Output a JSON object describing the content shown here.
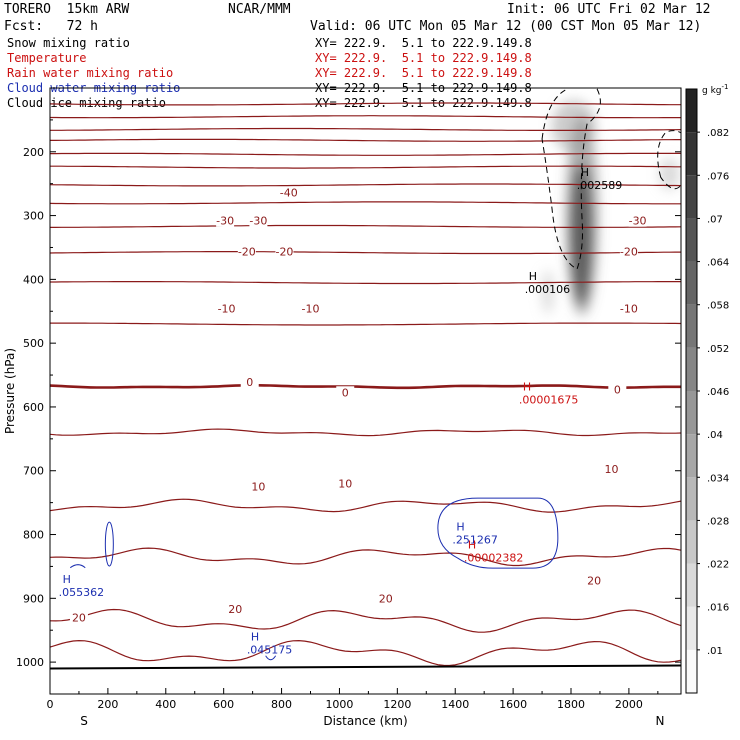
{
  "header": {
    "model": "TORERO  15km ARW",
    "source": "NCAR/MMM",
    "init": "Init: 06 UTC Fri 02 Mar 12",
    "fcst": "Fcst:   72 h",
    "valid": "Valid: 06 UTC Mon 05 Mar 12 (00 CST Mon 05 Mar 12)"
  },
  "colors": {
    "temperature": "#8b1a1a",
    "rain": "#cc1111",
    "cloud_water": "#1c2fb0",
    "cloud_ice": "#000000",
    "snow_shading": "#333333"
  },
  "legend": [
    {
      "label": "Snow mixing ratio",
      "xy": "XY= 222.9.  5.1 to 222.9.149.8",
      "color": "#000000"
    },
    {
      "label": "Temperature",
      "xy": "XY= 222.9.  5.1 to 222.9.149.8",
      "color": "#cc1111"
    },
    {
      "label": "Rain water mixing ratio",
      "xy": "XY= 222.9.  5.1 to 222.9.149.8",
      "color": "#cc1111"
    },
    {
      "label": "Cloud water mixing ratio",
      "xy": "XY= 222.9.  5.1 to 222.9.149.8",
      "color": "#1c2fb0"
    },
    {
      "label": "Cloud ice mixing ratio",
      "xy": "XY= 222.9.  5.1 to 222.9.149.8",
      "color": "#000000"
    }
  ],
  "chart_data": {
    "type": "cross-section",
    "xlabel": "Distance (km)",
    "ylabel": "Pressure (hPa)",
    "xlim": [
      0,
      2180
    ],
    "ylim": [
      1050,
      100
    ],
    "x_ticks": [
      0,
      200,
      400,
      600,
      800,
      1000,
      1200,
      1400,
      1600,
      1800,
      2000
    ],
    "y_ticks": [
      200,
      300,
      400,
      500,
      600,
      700,
      800,
      900,
      1000
    ],
    "endpoints": {
      "left": "S",
      "right": "N"
    },
    "surface_pressure_hPa": 1010,
    "temperature_isotherms_C": {
      "-60": 125,
      "-55": 145,
      "-50": 165,
      "-45": 182,
      "-40": 204,
      "-35": 224,
      "-30": 252,
      "-25": 280,
      "-20": 317,
      "-15": 358,
      "-10": 405,
      "-5": 470,
      "0": 568,
      "5": 640,
      "10": 755,
      "15": 835,
      "20": 935,
      "25": 985
    },
    "isotherm_labels": [
      {
        "text": "-40",
        "x": 825,
        "p": 264
      },
      {
        "text": "-30",
        "x": 605,
        "p": 308
      },
      {
        "text": "-30",
        "x": 720,
        "p": 308
      },
      {
        "text": "-30",
        "x": 2030,
        "p": 308
      },
      {
        "text": "-20",
        "x": 680,
        "p": 356
      },
      {
        "text": "-20",
        "x": 810,
        "p": 356
      },
      {
        "text": "-20",
        "x": 2000,
        "p": 356
      },
      {
        "text": "-10",
        "x": 610,
        "p": 446
      },
      {
        "text": "-10",
        "x": 900,
        "p": 446
      },
      {
        "text": "-10",
        "x": 2000,
        "p": 446
      },
      {
        "text": "0",
        "x": 690,
        "p": 561
      },
      {
        "text": "0",
        "x": 1020,
        "p": 577
      },
      {
        "text": "0",
        "x": 1960,
        "p": 573
      },
      {
        "text": "10",
        "x": 720,
        "p": 725
      },
      {
        "text": "10",
        "x": 1020,
        "p": 720
      },
      {
        "text": "10",
        "x": 1940,
        "p": 697
      },
      {
        "text": "20",
        "x": 100,
        "p": 930
      },
      {
        "text": "20",
        "x": 640,
        "p": 917
      },
      {
        "text": "20",
        "x": 1160,
        "p": 900
      },
      {
        "text": "20",
        "x": 1880,
        "p": 872
      }
    ],
    "max_labels": [
      {
        "field": "snow",
        "mark": "H",
        "value": ".002589",
        "x": 1820,
        "p": 252
      },
      {
        "field": "cloud_ice",
        "mark": "H",
        "value": ".000106",
        "x": 1640,
        "p": 415
      },
      {
        "field": "rain",
        "mark": "H",
        "value": ".00001675",
        "x": 1620,
        "p": 588
      },
      {
        "field": "cloud_water",
        "mark": "H",
        "value": ".251267",
        "x": 1390,
        "p": 808
      },
      {
        "field": "rain",
        "mark": "H",
        "value": ".00002382",
        "x": 1430,
        "p": 836
      },
      {
        "field": "cloud_water",
        "mark": "H",
        "value": ".055362",
        "x": 30,
        "p": 890
      },
      {
        "field": "cloud_water",
        "mark": "H",
        "value": ".045175",
        "x": 680,
        "p": 980
      }
    ],
    "colorbar": {
      "units": "g kg",
      "units_exp": "-1",
      "ticks": [
        ".01",
        ".016",
        ".022",
        ".028",
        ".034",
        ".04",
        ".046",
        ".052",
        ".058",
        ".064",
        ".07",
        ".076",
        ".082"
      ]
    }
  }
}
